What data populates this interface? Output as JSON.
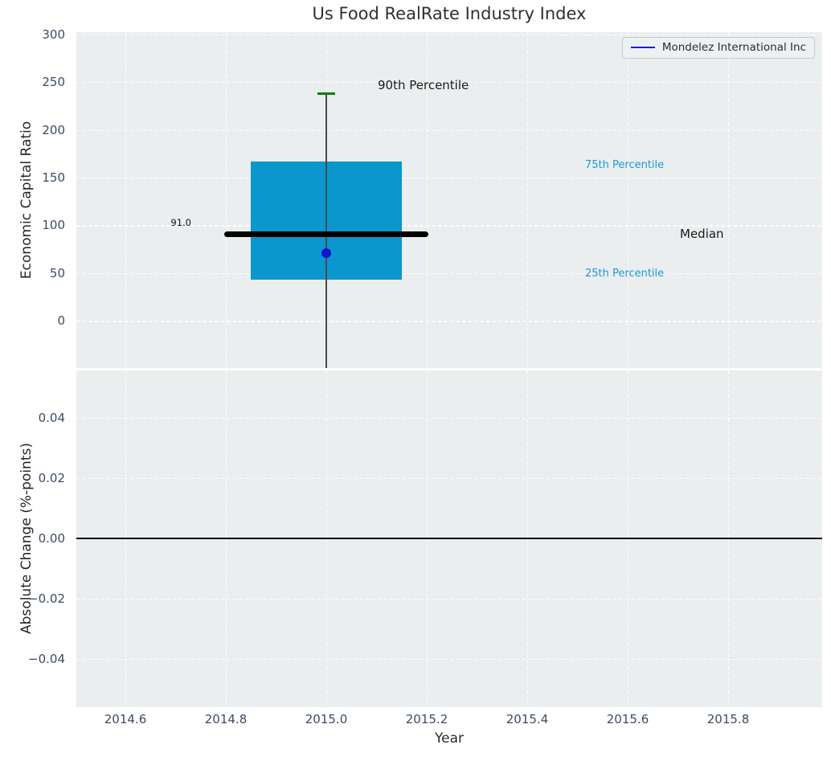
{
  "title": "Us Food RealRate Industry Index",
  "legend": {
    "label": "Mondelez International Inc"
  },
  "annotations": {
    "p90": "90th Percentile",
    "p75": "75th Percentile",
    "median": "Median",
    "p25": "25th Percentile",
    "median_value": "91.0"
  },
  "axes": {
    "x": {
      "label": "Year",
      "ticks": [
        "2014.6",
        "2014.8",
        "2015.0",
        "2015.2",
        "2015.4",
        "2015.6",
        "2015.8"
      ],
      "tick_values": [
        2014.6,
        2014.8,
        2015.0,
        2015.2,
        2015.4,
        2015.6,
        2015.8
      ],
      "lim": [
        2014.5024,
        2015.9872
      ]
    },
    "top_y": {
      "label": "Economic Capital Ratio",
      "ticks": [
        "300",
        "250",
        "200",
        "150",
        "100",
        "50",
        "0"
      ],
      "tick_values": [
        300,
        250,
        200,
        150,
        100,
        50,
        0
      ],
      "lim": [
        -49.4,
        302.3
      ]
    },
    "bottom_y": {
      "label": "Absolute Change (%-points)",
      "ticks": [
        "0.04",
        "0.02",
        "0.00",
        "−0.02",
        "−0.04"
      ],
      "tick_values": [
        0.04,
        0.02,
        0.0,
        -0.02,
        -0.04
      ],
      "lim": [
        -0.056,
        0.0557
      ]
    }
  },
  "chart_data": [
    {
      "type": "box",
      "title": "Us Food RealRate Industry Index",
      "xlabel": "Year",
      "ylabel": "Economic Capital Ratio",
      "xlim": [
        2014.5024,
        2015.9872
      ],
      "ylim": [
        -49.4,
        302.3
      ],
      "grid": true,
      "legend_position": "upper right",
      "boxes": [
        {
          "x": 2015.0,
          "q1": 43,
          "median": 91,
          "q3": 167,
          "p90": 238,
          "median_label": "91.0",
          "box_halfwidth": 0.15,
          "median_line_halfwidth": 0.203
        }
      ],
      "points": [
        {
          "name": "Mondelez International Inc",
          "x": 2015.0,
          "y": 71
        }
      ],
      "colors": {
        "box_fill": "#0997cd",
        "median_line": "#000000",
        "whisker": "#4a4a4a",
        "p90_cap": "#008000",
        "point": "#1212cf",
        "legend_line": "#1a1aff",
        "percentile_label": "#1d9bd1"
      }
    },
    {
      "type": "line",
      "ylabel": "Absolute Change (%-points)",
      "xlim": [
        2014.5024,
        2015.9872
      ],
      "ylim": [
        -0.056,
        0.0557
      ],
      "grid": true,
      "series": [],
      "zero_line_y": 0.0
    }
  ]
}
